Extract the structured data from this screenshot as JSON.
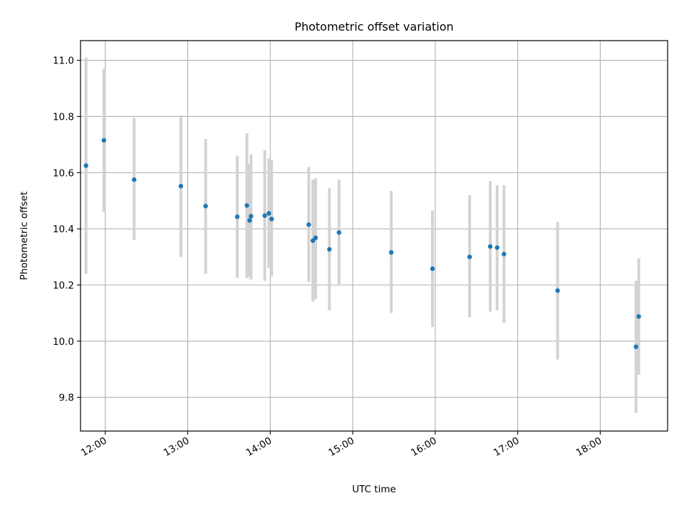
{
  "chart_data": {
    "type": "scatter",
    "title": "Photometric offset variation",
    "xlabel": "UTC time",
    "ylabel": "Photometric offset",
    "x_tick_labels": [
      "12:00",
      "13:00",
      "14:00",
      "15:00",
      "16:00",
      "17:00",
      "18:00"
    ],
    "x_ticks": [
      "12:00",
      "13:00",
      "14:00",
      "15:00",
      "16:00",
      "17:00",
      "18:00"
    ],
    "xlim": [
      "11:42",
      "18:49"
    ],
    "y_ticks": [
      9.8,
      10.0,
      10.2,
      10.4,
      10.6,
      10.8,
      11.0
    ],
    "y_tick_labels": [
      "9.8",
      "10.0",
      "10.2",
      "10.4",
      "10.6",
      "10.8",
      "11.0"
    ],
    "ylim": [
      9.68,
      11.07
    ],
    "grid": true,
    "colors": {
      "point": "#1f77b4",
      "errorbar": "#d3d3d3",
      "grid": "#b0b0b0"
    },
    "points": [
      {
        "t": "11:46",
        "y": 10.625,
        "lo": 10.24,
        "hi": 11.01
      },
      {
        "t": "11:59",
        "y": 10.715,
        "lo": 10.46,
        "hi": 10.97
      },
      {
        "t": "12:21",
        "y": 10.575,
        "lo": 10.36,
        "hi": 10.795
      },
      {
        "t": "12:55",
        "y": 10.552,
        "lo": 10.3,
        "hi": 10.805
      },
      {
        "t": "13:13",
        "y": 10.481,
        "lo": 10.24,
        "hi": 10.72
      },
      {
        "t": "13:36",
        "y": 10.443,
        "lo": 10.225,
        "hi": 10.66
      },
      {
        "t": "13:43",
        "y": 10.483,
        "lo": 10.225,
        "hi": 10.74
      },
      {
        "t": "13:45",
        "y": 10.43,
        "lo": 10.23,
        "hi": 10.63
      },
      {
        "t": "13:46",
        "y": 10.445,
        "lo": 10.22,
        "hi": 10.665
      },
      {
        "t": "13:56",
        "y": 10.447,
        "lo": 10.215,
        "hi": 10.68
      },
      {
        "t": "13:59",
        "y": 10.455,
        "lo": 10.26,
        "hi": 10.65
      },
      {
        "t": "14:01",
        "y": 10.435,
        "lo": 10.23,
        "hi": 10.645
      },
      {
        "t": "14:28",
        "y": 10.415,
        "lo": 10.21,
        "hi": 10.62
      },
      {
        "t": "14:31",
        "y": 10.358,
        "lo": 10.14,
        "hi": 10.575
      },
      {
        "t": "14:33",
        "y": 10.368,
        "lo": 10.15,
        "hi": 10.58
      },
      {
        "t": "14:43",
        "y": 10.327,
        "lo": 10.11,
        "hi": 10.545
      },
      {
        "t": "14:50",
        "y": 10.387,
        "lo": 10.2,
        "hi": 10.575
      },
      {
        "t": "15:28",
        "y": 10.316,
        "lo": 10.1,
        "hi": 10.535
      },
      {
        "t": "15:58",
        "y": 10.258,
        "lo": 10.05,
        "hi": 10.465
      },
      {
        "t": "16:25",
        "y": 10.3,
        "lo": 10.085,
        "hi": 10.52
      },
      {
        "t": "16:40",
        "y": 10.337,
        "lo": 10.105,
        "hi": 10.57
      },
      {
        "t": "16:45",
        "y": 10.333,
        "lo": 10.11,
        "hi": 10.555
      },
      {
        "t": "16:50",
        "y": 10.31,
        "lo": 10.065,
        "hi": 10.555
      },
      {
        "t": "17:29",
        "y": 10.18,
        "lo": 9.935,
        "hi": 10.425
      },
      {
        "t": "18:26",
        "y": 9.98,
        "lo": 9.745,
        "hi": 10.215
      },
      {
        "t": "18:28",
        "y": 10.088,
        "lo": 9.88,
        "hi": 10.295
      }
    ]
  }
}
